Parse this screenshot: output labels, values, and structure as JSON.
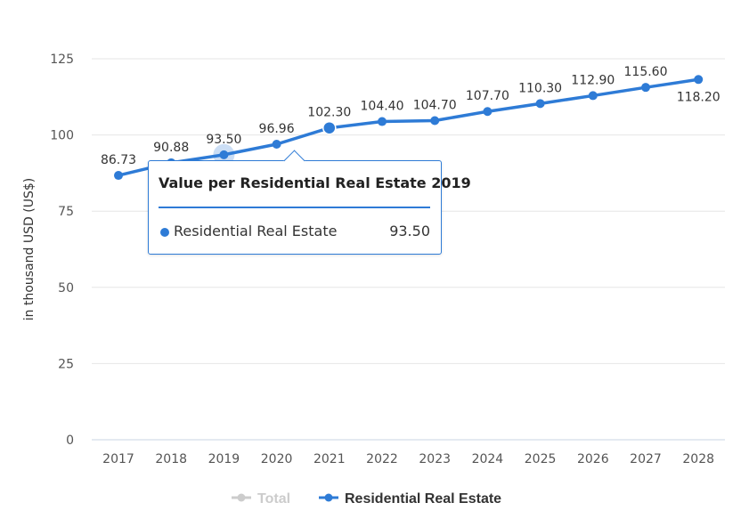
{
  "chart_data": {
    "type": "line",
    "title": "",
    "xlabel": "",
    "ylabel": "in thousand USD (US$)",
    "categories": [
      "2017",
      "2018",
      "2019",
      "2020",
      "2021",
      "2022",
      "2023",
      "2024",
      "2025",
      "2026",
      "2027",
      "2028"
    ],
    "yticks": [
      "0",
      "25",
      "50",
      "75",
      "100",
      "125"
    ],
    "ylim": [
      0,
      125
    ],
    "grid": true,
    "legend_position": "bottom-center",
    "series": [
      {
        "name": "Residential Real Estate",
        "color": "#2e7bd6",
        "values": [
          86.73,
          90.88,
          93.5,
          96.96,
          102.3,
          104.4,
          104.7,
          107.7,
          110.3,
          112.9,
          115.6,
          118.2
        ],
        "labels": [
          "86.73",
          "90.88",
          "93.50",
          "96.96",
          "102.30",
          "104.40",
          "104.70",
          "107.70",
          "110.30",
          "112.90",
          "115.60",
          "118.20"
        ]
      }
    ],
    "legend": [
      {
        "name": "Total",
        "color": "#cccccc",
        "visible": false
      },
      {
        "name": "Residential Real Estate",
        "color": "#2e7bd6",
        "visible": true
      }
    ],
    "highlighted_index": 2
  },
  "tooltip": {
    "title": "Value per Residential Real Estate 2019",
    "series_name": "Residential Real Estate",
    "value": "93.50"
  }
}
